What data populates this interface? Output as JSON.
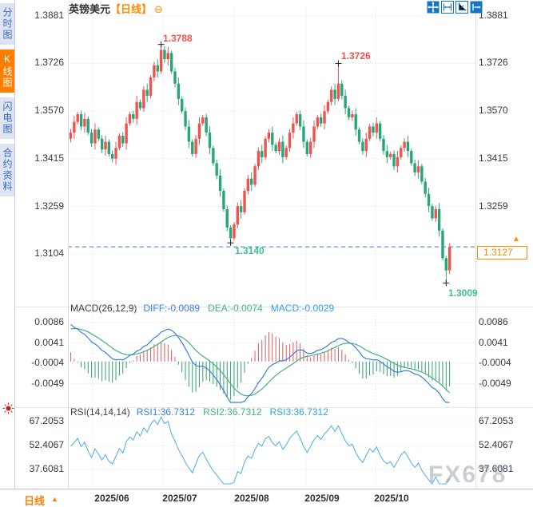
{
  "header": {
    "title": "英镑美元",
    "period": "【日线】",
    "collapse_icon": "⊖"
  },
  "sidebar": {
    "tabs": [
      {
        "label": "分时图",
        "selected": false
      },
      {
        "label": "K线图",
        "selected": true
      },
      {
        "label": "闪电图",
        "selected": false
      },
      {
        "label": "合约资料",
        "selected": false
      }
    ]
  },
  "toolbar": {
    "icons": [
      "move-tool",
      "zoom-horizontal-tool",
      "axis-scale-tool",
      "pan-right-tool"
    ]
  },
  "annotations": {
    "high1": "1.3788",
    "high2": "1.3726",
    "low1": "1.3140",
    "low2": "1.3009"
  },
  "price_tag": {
    "value": "1.3127",
    "arrow": "▲"
  },
  "macd_header": {
    "title": "MACD(26,12,9)",
    "diff": "DIFF:-0.0089",
    "dea": "DEA:-0.0074",
    "macd": "MACD:-0.0029"
  },
  "rsi_header": {
    "title": "RSI(14,14,14)",
    "rsi1": "RSI1:36.7312",
    "rsi2": "RSI2:36.7312",
    "rsi3": "RSI3:36.7312"
  },
  "bottom_bar": {
    "period_label": "日线",
    "dropdown_arrow": "▲",
    "dates": [
      "2025/06",
      "2025/07",
      "2025/08",
      "2025/09",
      "2025/10"
    ]
  },
  "watermark": "FX678",
  "colors": {
    "up": "#ef5350",
    "down": "#28a679",
    "accent_orange": "#ff8a00",
    "diff_line": "#3b7fd8",
    "dea_line": "#44b183",
    "hist_pos": "#e05a5a",
    "hist_neg": "#2fa06d",
    "rsi_line": "#5cb3e6",
    "dashed_price_line": "#2b7fe0",
    "annotation_red": "#ef5350",
    "annotation_green": "#3fc08d",
    "grid": "#d9dde5",
    "cross_marker": "#222222"
  },
  "chart_data": {
    "type": "candlestick",
    "symbol": "英镑美元",
    "interval": "日线",
    "x_labels": [
      "2025/06",
      "2025/07",
      "2025/08",
      "2025/09",
      "2025/10"
    ],
    "price_panel": {
      "yticks": [
        1.3881,
        1.3726,
        1.357,
        1.3415,
        1.3259,
        1.3104
      ],
      "current_price": 1.3127,
      "high_annotations": [
        {
          "index": 26,
          "price": 1.3788
        },
        {
          "index": 77,
          "price": 1.3726
        }
      ],
      "low_annotations": [
        {
          "index": 46,
          "price": 1.314
        },
        {
          "index": 108,
          "price": 1.3009
        }
      ]
    },
    "macd_panel": {
      "params": [
        26,
        12,
        9
      ],
      "yticks": [
        0.0086,
        0.0041,
        -0.0004,
        -0.0049
      ],
      "current": {
        "diff": -0.0089,
        "dea": -0.0074,
        "macd": -0.0029
      }
    },
    "rsi_panel": {
      "params": [
        14,
        14,
        14
      ],
      "yticks": [
        67.2053,
        52.4067,
        37.6081
      ],
      "current": {
        "rsi1": 36.7312,
        "rsi2": 36.7312,
        "rsi3": 36.7312
      }
    },
    "candles": [
      [
        1.348,
        1.3512,
        1.3468,
        1.35
      ],
      [
        1.35,
        1.3555,
        1.348,
        1.3535
      ],
      [
        1.3535,
        1.3568,
        1.3527,
        1.356
      ],
      [
        1.356,
        1.3572,
        1.3508,
        1.352
      ],
      [
        1.352,
        1.3565,
        1.35,
        1.3545
      ],
      [
        1.3545,
        1.3553,
        1.3492,
        1.35
      ],
      [
        1.35,
        1.3512,
        1.3453,
        1.3465
      ],
      [
        1.3465,
        1.353,
        1.3445,
        1.351
      ],
      [
        1.351,
        1.3518,
        1.3472,
        1.348
      ],
      [
        1.348,
        1.3492,
        1.3433,
        1.3445
      ],
      [
        1.3445,
        1.349,
        1.3425,
        1.347
      ],
      [
        1.347,
        1.3478,
        1.3422,
        1.343
      ],
      [
        1.343,
        1.3442,
        1.3403,
        1.3415
      ],
      [
        1.3415,
        1.347,
        1.3395,
        1.345
      ],
      [
        1.345,
        1.3498,
        1.3442,
        1.349
      ],
      [
        1.349,
        1.3502,
        1.3453,
        1.3465
      ],
      [
        1.3465,
        1.355,
        1.3445,
        1.353
      ],
      [
        1.353,
        1.3568,
        1.3522,
        1.356
      ],
      [
        1.356,
        1.3572,
        1.3533,
        1.3545
      ],
      [
        1.3545,
        1.362,
        1.3525,
        1.36
      ],
      [
        1.36,
        1.3608,
        1.3572,
        1.358
      ],
      [
        1.358,
        1.3652,
        1.3568,
        1.364
      ],
      [
        1.364,
        1.366,
        1.36,
        1.362
      ],
      [
        1.362,
        1.3688,
        1.3612,
        1.368
      ],
      [
        1.368,
        1.3732,
        1.3668,
        1.372
      ],
      [
        1.372,
        1.374,
        1.368,
        1.37
      ],
      [
        1.37,
        1.3788,
        1.3692,
        1.377
      ],
      [
        1.377,
        1.3782,
        1.3728,
        1.374
      ],
      [
        1.374,
        1.378,
        1.372,
        1.376
      ],
      [
        1.376,
        1.3768,
        1.3692,
        1.37
      ],
      [
        1.37,
        1.3712,
        1.3648,
        1.366
      ],
      [
        1.366,
        1.368,
        1.359,
        1.361
      ],
      [
        1.361,
        1.3618,
        1.3562,
        1.357
      ],
      [
        1.357,
        1.3582,
        1.3508,
        1.352
      ],
      [
        1.352,
        1.354,
        1.345,
        1.347
      ],
      [
        1.347,
        1.3478,
        1.3422,
        1.343
      ],
      [
        1.343,
        1.3492,
        1.3418,
        1.348
      ],
      [
        1.348,
        1.355,
        1.346,
        1.353
      ],
      [
        1.353,
        1.3558,
        1.3522,
        1.355
      ],
      [
        1.355,
        1.3562,
        1.3488,
        1.35
      ],
      [
        1.35,
        1.352,
        1.343,
        1.345
      ],
      [
        1.345,
        1.3458,
        1.3392,
        1.34
      ],
      [
        1.34,
        1.3412,
        1.3348,
        1.336
      ],
      [
        1.336,
        1.338,
        1.329,
        1.331
      ],
      [
        1.331,
        1.3318,
        1.3242,
        1.325
      ],
      [
        1.325,
        1.3262,
        1.3178,
        1.319
      ],
      [
        1.319,
        1.3198,
        1.314,
        1.3155
      ],
      [
        1.3155,
        1.3208,
        1.3147,
        1.32
      ],
      [
        1.32,
        1.3272,
        1.3188,
        1.326
      ],
      [
        1.326,
        1.328,
        1.322,
        1.324
      ],
      [
        1.324,
        1.3318,
        1.3232,
        1.331
      ],
      [
        1.331,
        1.3362,
        1.3298,
        1.335
      ],
      [
        1.335,
        1.337,
        1.331,
        1.333
      ],
      [
        1.333,
        1.3398,
        1.3322,
        1.339
      ],
      [
        1.339,
        1.3452,
        1.3378,
        1.344
      ],
      [
        1.344,
        1.346,
        1.34,
        1.342
      ],
      [
        1.342,
        1.3488,
        1.3412,
        1.348
      ],
      [
        1.348,
        1.3512,
        1.3468,
        1.35
      ],
      [
        1.35,
        1.352,
        1.344,
        1.346
      ],
      [
        1.346,
        1.3468,
        1.3432,
        1.344
      ],
      [
        1.344,
        1.3482,
        1.3428,
        1.347
      ],
      [
        1.347,
        1.349,
        1.34,
        1.342
      ],
      [
        1.342,
        1.3458,
        1.3412,
        1.345
      ],
      [
        1.345,
        1.3512,
        1.3438,
        1.35
      ],
      [
        1.35,
        1.355,
        1.348,
        1.353
      ],
      [
        1.353,
        1.3568,
        1.3522,
        1.356
      ],
      [
        1.356,
        1.3572,
        1.3508,
        1.352
      ],
      [
        1.352,
        1.354,
        1.345,
        1.347
      ],
      [
        1.347,
        1.3478,
        1.3422,
        1.343
      ],
      [
        1.343,
        1.3482,
        1.3418,
        1.347
      ],
      [
        1.347,
        1.354,
        1.345,
        1.352
      ],
      [
        1.352,
        1.3558,
        1.3512,
        1.355
      ],
      [
        1.355,
        1.3562,
        1.3518,
        1.353
      ],
      [
        1.353,
        1.359,
        1.351,
        1.357
      ],
      [
        1.357,
        1.3608,
        1.3562,
        1.36
      ],
      [
        1.36,
        1.3652,
        1.3588,
        1.364
      ],
      [
        1.364,
        1.366,
        1.359,
        1.361
      ],
      [
        1.361,
        1.3726,
        1.3602,
        1.366
      ],
      [
        1.366,
        1.3672,
        1.3608,
        1.362
      ],
      [
        1.362,
        1.364,
        1.356,
        1.358
      ],
      [
        1.358,
        1.3588,
        1.3542,
        1.355
      ],
      [
        1.355,
        1.3572,
        1.3538,
        1.356
      ],
      [
        1.356,
        1.358,
        1.349,
        1.351
      ],
      [
        1.351,
        1.3518,
        1.3462,
        1.347
      ],
      [
        1.347,
        1.3482,
        1.3428,
        1.344
      ],
      [
        1.344,
        1.35,
        1.342,
        1.348
      ],
      [
        1.348,
        1.3528,
        1.3472,
        1.352
      ],
      [
        1.352,
        1.3532,
        1.3488,
        1.35
      ],
      [
        1.35,
        1.355,
        1.348,
        1.353
      ],
      [
        1.353,
        1.3538,
        1.3472,
        1.348
      ],
      [
        1.348,
        1.3492,
        1.3428,
        1.344
      ],
      [
        1.344,
        1.346,
        1.34,
        1.342
      ],
      [
        1.342,
        1.3438,
        1.3412,
        1.343
      ],
      [
        1.343,
        1.3442,
        1.3378,
        1.339
      ],
      [
        1.339,
        1.344,
        1.337,
        1.342
      ],
      [
        1.342,
        1.3458,
        1.3412,
        1.345
      ],
      [
        1.345,
        1.3482,
        1.3438,
        1.347
      ],
      [
        1.347,
        1.349,
        1.342,
        1.344
      ],
      [
        1.344,
        1.3448,
        1.3392,
        1.34
      ],
      [
        1.34,
        1.3412,
        1.3358,
        1.337
      ],
      [
        1.337,
        1.341,
        1.335,
        1.339
      ],
      [
        1.339,
        1.3398,
        1.3332,
        1.334
      ],
      [
        1.334,
        1.3352,
        1.3288,
        1.33
      ],
      [
        1.33,
        1.332,
        1.324,
        1.326
      ],
      [
        1.326,
        1.3268,
        1.3212,
        1.322
      ],
      [
        1.322,
        1.3262,
        1.3208,
        1.325
      ],
      [
        1.325,
        1.327,
        1.316,
        1.318
      ],
      [
        1.318,
        1.3188,
        1.3082,
        1.309
      ],
      [
        1.309,
        1.3098,
        1.3009,
        1.305
      ],
      [
        1.305,
        1.3139,
        1.3038,
        1.3127
      ]
    ]
  }
}
